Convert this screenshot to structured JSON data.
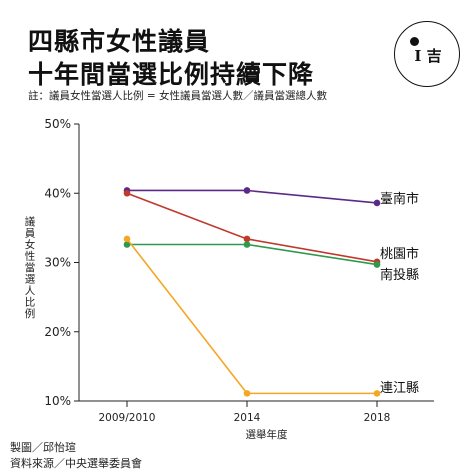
{
  "header": {
    "title_line1": "四縣市女性議員",
    "title_line2": "十年間當選比例持續下降",
    "note": "註：議員女性當選人比例 = 女性議員當選人數／議員當選總人數"
  },
  "logo": {
    "glyph": "I 吉"
  },
  "footer": {
    "credit_design": "製圖／邱怡瑄",
    "credit_source": "資料來源／中央選舉委員會"
  },
  "chart_data": {
    "type": "line",
    "categories": [
      "2009/2010",
      "2014",
      "2018"
    ],
    "ylim": [
      10,
      50
    ],
    "yticks": [
      10,
      20,
      30,
      40,
      50
    ],
    "ytick_labels": [
      "10%",
      "20%",
      "30%",
      "40%",
      "50%"
    ],
    "xlabel": "選舉年度",
    "ylabel": "議員女性當選人比例",
    "grid": false,
    "series": [
      {
        "name": "臺南市",
        "values": [
          40.4,
          40.4,
          38.6
        ],
        "color": "#5b2a86"
      },
      {
        "name": "桃園市",
        "values": [
          40.0,
          33.4,
          30.1
        ],
        "color": "#c0392b"
      },
      {
        "name": "南投縣",
        "values": [
          32.6,
          32.6,
          29.7
        ],
        "color": "#2e9a4b"
      },
      {
        "name": "連江縣",
        "values": [
          33.4,
          11.1,
          11.1
        ],
        "color": "#f5a623"
      }
    ]
  }
}
